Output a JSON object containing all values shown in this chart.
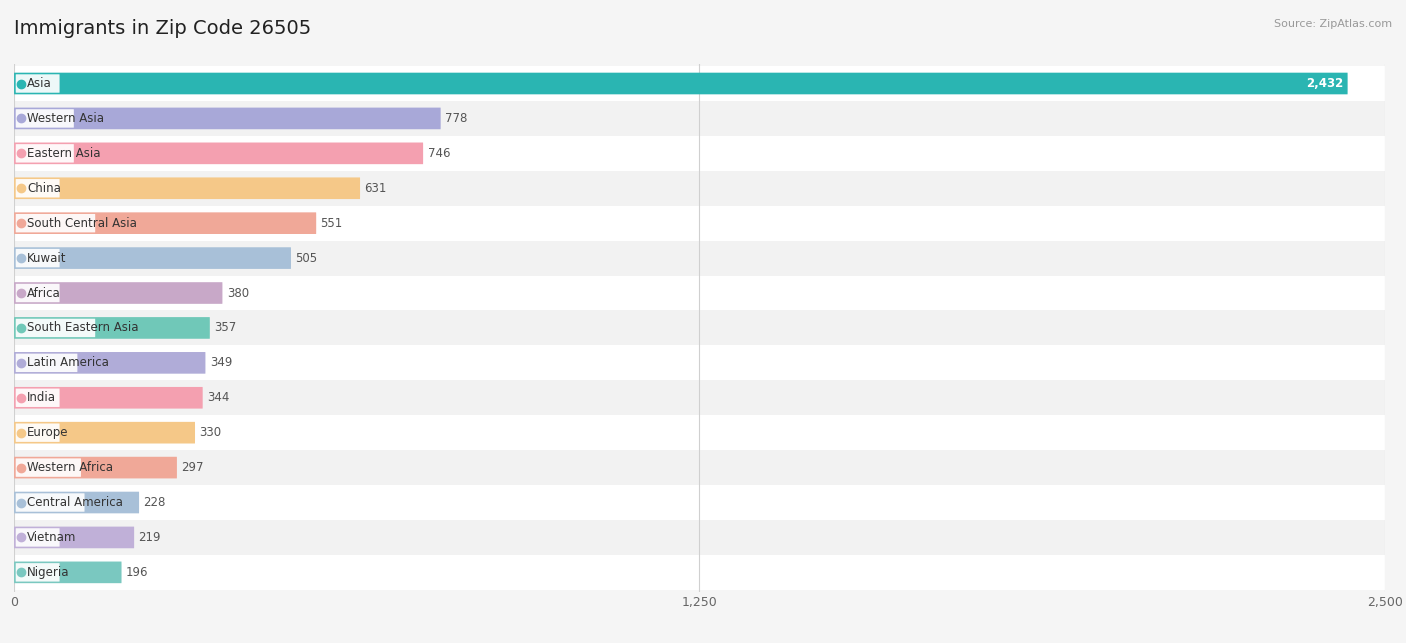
{
  "title": "Immigrants in Zip Code 26505",
  "source_text": "Source: ZipAtlas.com",
  "categories": [
    "Asia",
    "Western Asia",
    "Eastern Asia",
    "China",
    "South Central Asia",
    "Kuwait",
    "Africa",
    "South Eastern Asia",
    "Latin America",
    "India",
    "Europe",
    "Western Africa",
    "Central America",
    "Vietnam",
    "Nigeria"
  ],
  "values": [
    2432,
    778,
    746,
    631,
    551,
    505,
    380,
    357,
    349,
    344,
    330,
    297,
    228,
    219,
    196
  ],
  "bar_colors": [
    "#2ab5b2",
    "#a8a8d8",
    "#f4a0b0",
    "#f5c888",
    "#f0a898",
    "#a8c0d8",
    "#c8a8c8",
    "#70c8b8",
    "#b0acd8",
    "#f4a0b0",
    "#f5c888",
    "#f0a898",
    "#a8c0d8",
    "#c0b0d8",
    "#7ac8c0"
  ],
  "circle_colors": [
    "#2ab5b2",
    "#a8a8d8",
    "#f4a0b0",
    "#f5c888",
    "#f0a898",
    "#a8c0d8",
    "#c8a8c8",
    "#70c8b8",
    "#b0acd8",
    "#f4a0b0",
    "#f5c888",
    "#f0a898",
    "#a8c0d8",
    "#c0b0d8",
    "#7ac8c0"
  ],
  "row_bg_even": "#ffffff",
  "row_bg_odd": "#f2f2f2",
  "xlim": [
    0,
    2500
  ],
  "xticks": [
    0,
    1250,
    2500
  ],
  "background_color": "#f5f5f5",
  "title_fontsize": 14,
  "label_fontsize": 8.5,
  "value_fontsize": 8.5
}
